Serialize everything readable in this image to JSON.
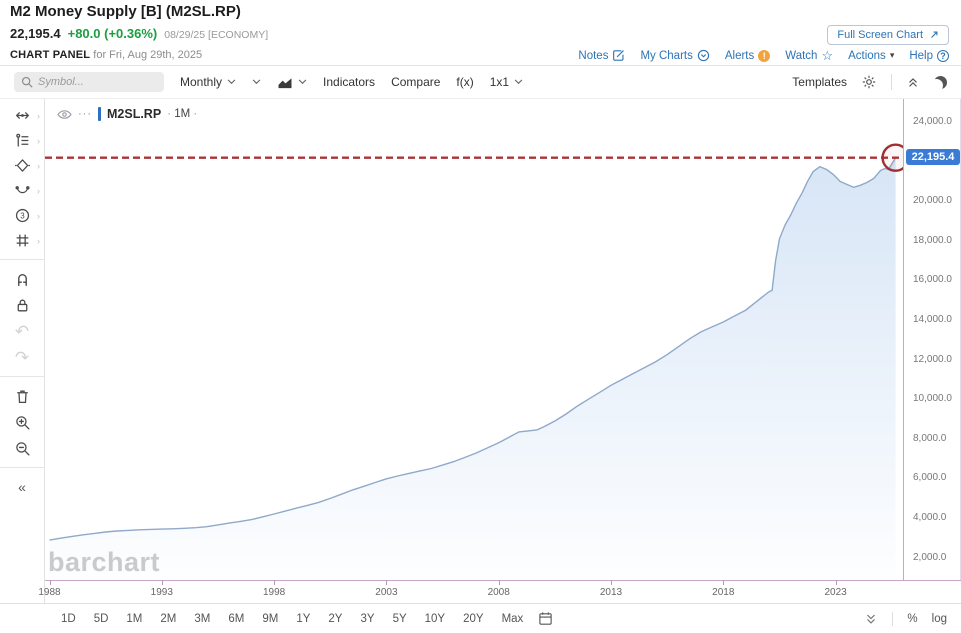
{
  "header": {
    "title": "M2 Money Supply [B] (M2SL.RP)",
    "last_price": "22,195.4",
    "change": "+80.0 (+0.36%)",
    "date_tag": "08/29/25 [ECONOMY]",
    "panel_label": "CHART PANEL",
    "panel_date": "for Fri, Aug 29th, 2025",
    "fullscreen_button": "Full Screen Chart",
    "links": {
      "notes": "Notes",
      "my_charts": "My Charts",
      "alerts": "Alerts",
      "watch": "Watch",
      "actions": "Actions",
      "help": "Help"
    },
    "colors": {
      "change_green": "#1a9e3f",
      "link_blue": "#2d74b5"
    }
  },
  "icon_glyphs": {
    "alerts": "!",
    "help": "?",
    "watch": "☆",
    "caret": "▾",
    "collapse_sidebar": "«",
    "undo": "↶",
    "redo": "↷",
    "dots": "···"
  },
  "toolbar": {
    "symbol_placeholder": "Symbol...",
    "frequency": "Monthly",
    "indicators": "Indicators",
    "compare": "Compare",
    "fx": "f(x)",
    "grid_layout": "1x1",
    "templates": "Templates"
  },
  "sidebar": {
    "icons": [
      "pointer-tool",
      "trendline-tools",
      "shapes-tools",
      "arc-tools",
      "elliott-wave-tools",
      "gann-tools",
      "magnet-mode",
      "lock-drawings",
      "undo",
      "redo",
      "delete-drawings",
      "zoom-in",
      "zoom-out",
      "collapse-sidebar"
    ]
  },
  "legend": {
    "symbol": "M2SL.RP",
    "period": "1M"
  },
  "watermark": "barchart",
  "price_tag": {
    "value": "22,195.4",
    "bg": "#3a7bd5"
  },
  "annotation": {
    "type": "horizontal-dashed-line-with-circle",
    "color": "#a93439",
    "value": 22195.4
  },
  "chart_data": {
    "type": "area",
    "title": "M2 Money Supply (M2SL.RP), monthly, $ billions",
    "xlabel": "",
    "ylabel": "",
    "grid": false,
    "x_domain": [
      1987.8,
      2026.0
    ],
    "y_domain": [
      868,
      25161
    ],
    "x_ticks": [
      1988,
      1993,
      1998,
      2003,
      2008,
      2013,
      2018,
      2023
    ],
    "y_ticks": [
      "24,000.0",
      "20,000.0",
      "18,000.0",
      "16,000.0",
      "14,000.0",
      "12,000.0",
      "10,000.0",
      "8,000.0",
      "6,000.0",
      "4,000.0",
      "2,000.0"
    ],
    "y_tick_values": [
      24000,
      20000,
      18000,
      16000,
      14000,
      12000,
      10000,
      8000,
      6000,
      4000,
      2000
    ],
    "line_color": "#8fa9c9",
    "fill_top": "#d7e5f6",
    "fill_bottom": "#fdfeff",
    "last_value": 22195.4,
    "series": [
      {
        "name": "M2SL.RP",
        "points": [
          [
            1988.0,
            2885
          ],
          [
            1988.5,
            2980
          ],
          [
            1989.0,
            3070
          ],
          [
            1989.5,
            3150
          ],
          [
            1990.0,
            3223
          ],
          [
            1990.5,
            3290
          ],
          [
            1991.0,
            3342
          ],
          [
            1991.5,
            3375
          ],
          [
            1992.0,
            3402
          ],
          [
            1992.5,
            3425
          ],
          [
            1993.0,
            3440
          ],
          [
            1993.5,
            3455
          ],
          [
            1994.0,
            3480
          ],
          [
            1994.5,
            3510
          ],
          [
            1995.0,
            3560
          ],
          [
            1995.5,
            3650
          ],
          [
            1996.0,
            3740
          ],
          [
            1996.5,
            3830
          ],
          [
            1997.0,
            3920
          ],
          [
            1997.5,
            4060
          ],
          [
            1998.0,
            4200
          ],
          [
            1998.5,
            4350
          ],
          [
            1999.0,
            4500
          ],
          [
            1999.5,
            4640
          ],
          [
            2000.0,
            4790
          ],
          [
            2000.5,
            4990
          ],
          [
            2001.0,
            5200
          ],
          [
            2001.5,
            5420
          ],
          [
            2002.0,
            5600
          ],
          [
            2002.5,
            5790
          ],
          [
            2003.0,
            5980
          ],
          [
            2003.5,
            6120
          ],
          [
            2004.0,
            6250
          ],
          [
            2004.5,
            6380
          ],
          [
            2005.0,
            6500
          ],
          [
            2005.5,
            6670
          ],
          [
            2006.0,
            6850
          ],
          [
            2006.5,
            7060
          ],
          [
            2007.0,
            7280
          ],
          [
            2007.5,
            7540
          ],
          [
            2008.0,
            7800
          ],
          [
            2008.5,
            8100
          ],
          [
            2008.9,
            8350
          ],
          [
            2009.3,
            8400
          ],
          [
            2009.7,
            8450
          ],
          [
            2010.0,
            8600
          ],
          [
            2010.5,
            8900
          ],
          [
            2011.0,
            9250
          ],
          [
            2011.5,
            9650
          ],
          [
            2012.0,
            10000
          ],
          [
            2012.5,
            10350
          ],
          [
            2013.0,
            10700
          ],
          [
            2013.5,
            11000
          ],
          [
            2014.0,
            11300
          ],
          [
            2014.5,
            11600
          ],
          [
            2015.0,
            11900
          ],
          [
            2015.5,
            12250
          ],
          [
            2016.0,
            12650
          ],
          [
            2016.5,
            13050
          ],
          [
            2017.0,
            13400
          ],
          [
            2017.5,
            13650
          ],
          [
            2018.0,
            13900
          ],
          [
            2018.5,
            14200
          ],
          [
            2019.0,
            14500
          ],
          [
            2019.5,
            14950
          ],
          [
            2020.0,
            15400
          ],
          [
            2020.17,
            15500
          ],
          [
            2020.33,
            17000
          ],
          [
            2020.5,
            18100
          ],
          [
            2020.75,
            18800
          ],
          [
            2021.0,
            19300
          ],
          [
            2021.25,
            19900
          ],
          [
            2021.5,
            20400
          ],
          [
            2021.75,
            21000
          ],
          [
            2022.0,
            21500
          ],
          [
            2022.3,
            21740
          ],
          [
            2022.6,
            21600
          ],
          [
            2022.9,
            21350
          ],
          [
            2023.2,
            21000
          ],
          [
            2023.5,
            20850
          ],
          [
            2023.8,
            20700
          ],
          [
            2024.1,
            20800
          ],
          [
            2024.4,
            20950
          ],
          [
            2024.7,
            21150
          ],
          [
            2025.0,
            21550
          ],
          [
            2025.2,
            21650
          ],
          [
            2025.35,
            21600
          ],
          [
            2025.67,
            22195.4
          ]
        ]
      }
    ]
  },
  "bottombar": {
    "ranges": [
      "1D",
      "5D",
      "1M",
      "2M",
      "3M",
      "6M",
      "9M",
      "1Y",
      "2Y",
      "3Y",
      "5Y",
      "10Y",
      "20Y",
      "Max"
    ],
    "percent": "%",
    "log": "log"
  }
}
